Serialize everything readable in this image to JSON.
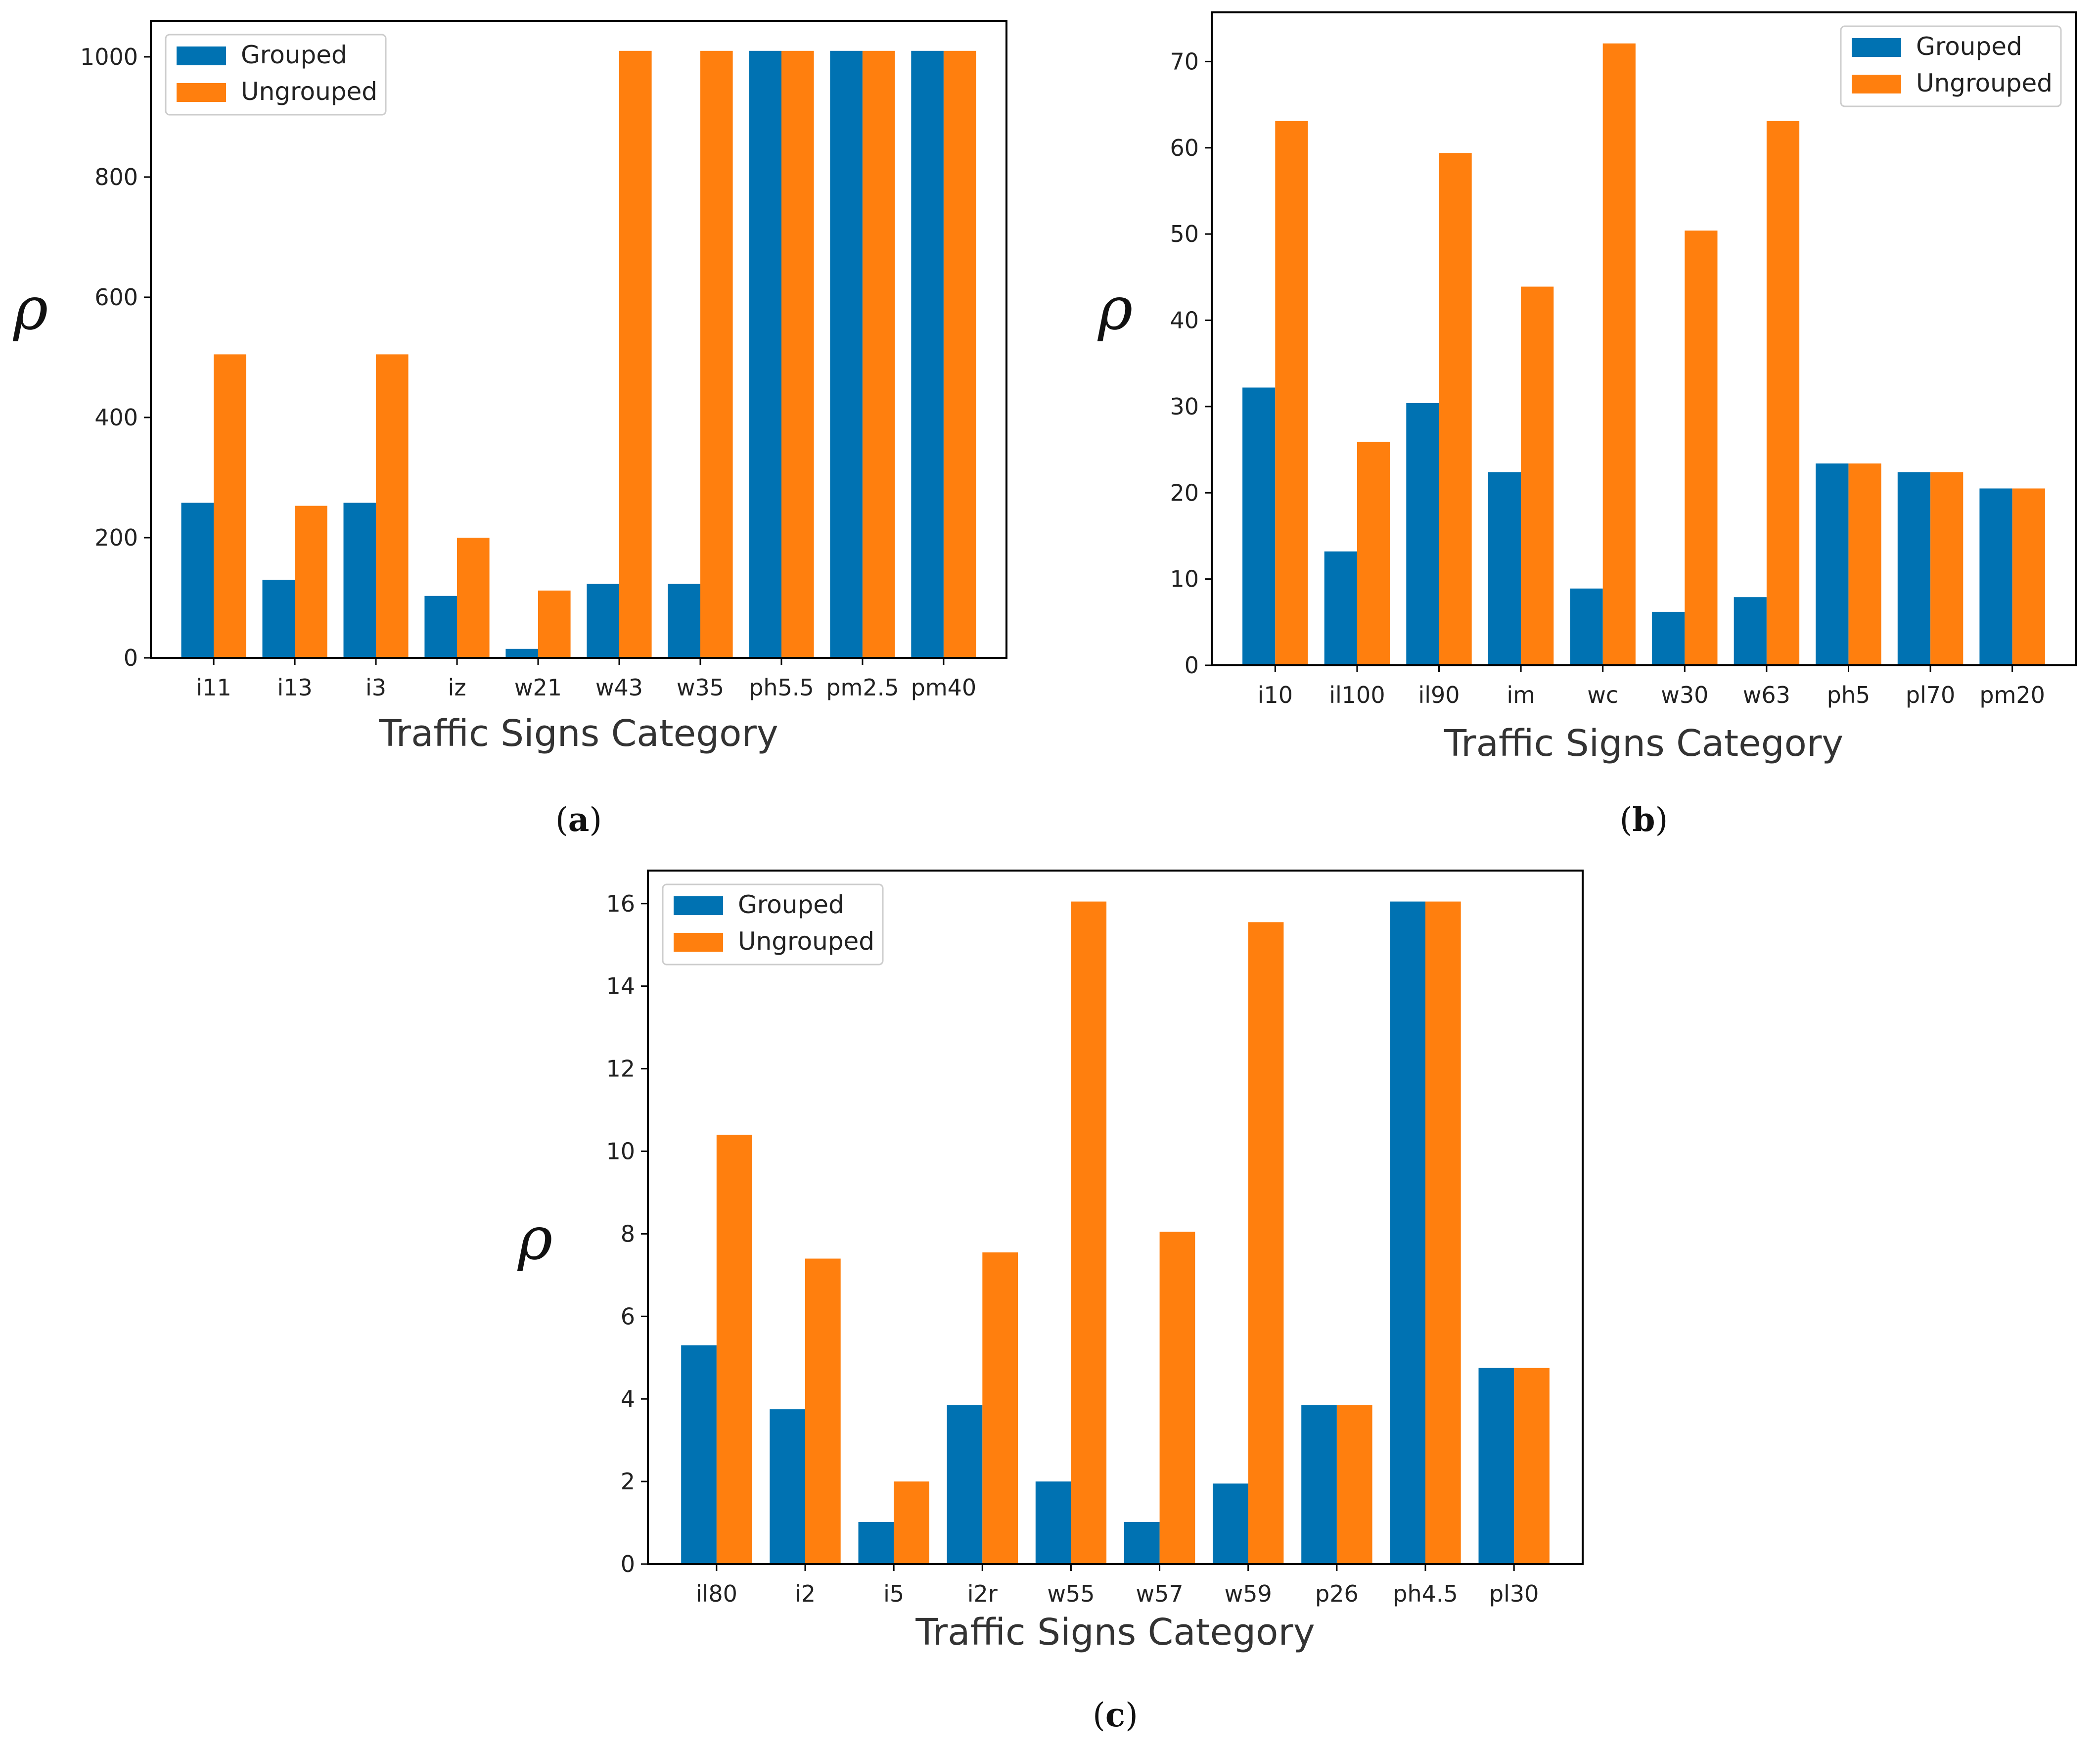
{
  "colors": {
    "grouped": "#0072b2",
    "ungrouped": "#ff7f0e",
    "axis": "#000000"
  },
  "chart_data": [
    {
      "type": "bar",
      "panel": "a",
      "caption": {
        "open": "(",
        "letter": "a",
        "close": ")"
      },
      "categories": [
        "i11",
        "i13",
        "i3",
        "iz",
        "w21",
        "w43",
        "w35",
        "ph5.5",
        "pm2.5",
        "pm40"
      ],
      "series": [
        {
          "name": "Grouped",
          "values": [
            258,
            130,
            258,
            103,
            15,
            123,
            123,
            1010,
            1010,
            1010
          ]
        },
        {
          "name": "Ungrouped",
          "values": [
            505,
            253,
            505,
            200,
            112,
            1010,
            1010,
            1010,
            1010,
            1010
          ]
        }
      ],
      "xlabel": "Traffic Signs Category",
      "ylabel": "ρ",
      "ylim": [
        0,
        1060
      ],
      "yticks": [
        0,
        200,
        400,
        600,
        800,
        1000
      ],
      "ytick_labels": [
        "0",
        "200",
        "400",
        "600",
        "800",
        "1000"
      ],
      "legend": "top-left",
      "grid": false
    },
    {
      "type": "bar",
      "panel": "b",
      "caption": {
        "open": "(",
        "letter": "b",
        "close": ")"
      },
      "categories": [
        "i10",
        "il100",
        "il90",
        "im",
        "wc",
        "w30",
        "w63",
        "ph5",
        "pl70",
        "pm20"
      ],
      "series": [
        {
          "name": "Grouped",
          "values": [
            32.2,
            13.2,
            30.4,
            22.4,
            8.9,
            6.2,
            7.9,
            23.4,
            22.4,
            20.5
          ]
        },
        {
          "name": "Ungrouped",
          "values": [
            63.1,
            25.9,
            59.4,
            43.9,
            72.1,
            50.4,
            63.1,
            23.4,
            22.4,
            20.5
          ]
        }
      ],
      "xlabel": "Traffic Signs Category",
      "ylabel": "ρ",
      "ylim": [
        0,
        75.7
      ],
      "yticks": [
        0,
        10,
        20,
        30,
        40,
        50,
        60,
        70
      ],
      "ytick_labels": [
        "0",
        "10",
        "20",
        "30",
        "40",
        "50",
        "60",
        "70"
      ],
      "legend": "top-right",
      "grid": false
    },
    {
      "type": "bar",
      "panel": "c",
      "caption": {
        "open": "(",
        "letter": "c",
        "close": ")"
      },
      "categories": [
        "il80",
        "i2",
        "i5",
        "i2r",
        "w55",
        "w57",
        "w59",
        "p26",
        "ph4.5",
        "pl30"
      ],
      "series": [
        {
          "name": "Grouped",
          "values": [
            5.3,
            3.75,
            1.02,
            3.85,
            2.0,
            1.02,
            1.95,
            3.85,
            16.05,
            4.75
          ]
        },
        {
          "name": "Ungrouped",
          "values": [
            10.4,
            7.4,
            2.0,
            7.55,
            16.05,
            8.05,
            15.55,
            3.85,
            16.05,
            4.75
          ]
        }
      ],
      "xlabel": "Traffic Signs Category",
      "ylabel": "ρ",
      "ylim": [
        0,
        16.8
      ],
      "yticks": [
        0,
        2,
        4,
        6,
        8,
        10,
        12,
        14,
        16
      ],
      "ytick_labels": [
        "0",
        "2",
        "4",
        "6",
        "8",
        "10",
        "12",
        "14",
        "16"
      ],
      "legend": "top-left",
      "grid": false
    }
  ]
}
